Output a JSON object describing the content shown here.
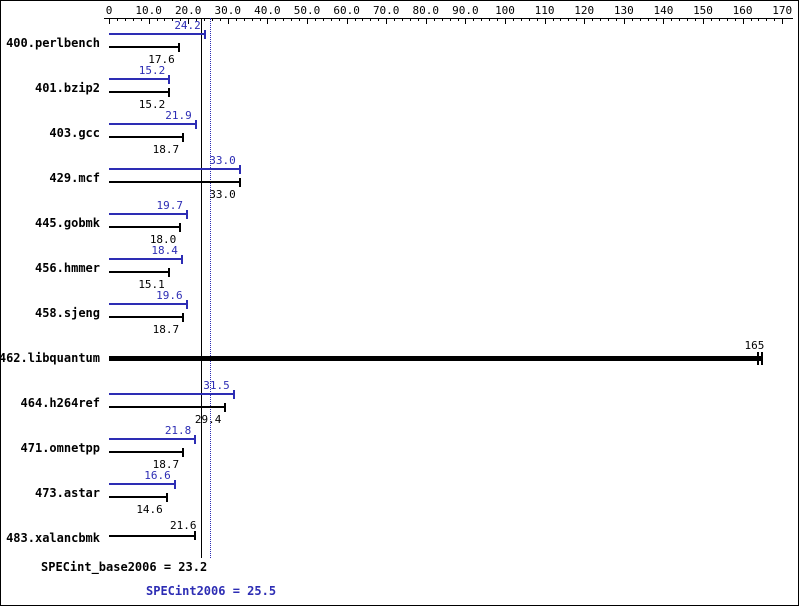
{
  "chart_data": {
    "type": "bar",
    "orientation": "horizontal",
    "axis": {
      "min": 0,
      "max": 170,
      "major_tick_step": 10,
      "minor_tick_step": 2,
      "tick_labels": [
        "0",
        "10.0",
        "20.0",
        "30.0",
        "40.0",
        "50.0",
        "60.0",
        "70.0",
        "80.0",
        "90.0",
        "100",
        "110",
        "120",
        "130",
        "140",
        "150",
        "160",
        "170"
      ]
    },
    "benchmarks": [
      {
        "name": "400.perlbench",
        "peak": 24.2,
        "peak_label": "24.2",
        "base": 17.6,
        "base_label": "17.6"
      },
      {
        "name": "401.bzip2",
        "peak": 15.2,
        "peak_label": "15.2",
        "base": 15.2,
        "base_label": "15.2"
      },
      {
        "name": "403.gcc",
        "peak": 21.9,
        "peak_label": "21.9",
        "base": 18.7,
        "base_label": "18.7"
      },
      {
        "name": "429.mcf",
        "peak": 33.0,
        "peak_label": "33.0",
        "base": 33.0,
        "base_label": "33.0"
      },
      {
        "name": "445.gobmk",
        "peak": 19.7,
        "peak_label": "19.7",
        "base": 18.0,
        "base_label": "18.0"
      },
      {
        "name": "456.hmmer",
        "peak": 18.4,
        "peak_label": "18.4",
        "base": 15.1,
        "base_label": "15.1"
      },
      {
        "name": "458.sjeng",
        "peak": 19.6,
        "peak_label": "19.6",
        "base": 18.7,
        "base_label": "18.7"
      },
      {
        "name": "462.libquantum",
        "single": 165,
        "single_label": "165",
        "style": "thick"
      },
      {
        "name": "464.h264ref",
        "peak": 31.5,
        "peak_label": "31.5",
        "base": 29.4,
        "base_label": "29.4"
      },
      {
        "name": "471.omnetpp",
        "peak": 21.8,
        "peak_label": "21.8",
        "base": 18.7,
        "base_label": "18.7"
      },
      {
        "name": "473.astar",
        "peak": 16.6,
        "peak_label": "16.6",
        "base": 14.6,
        "base_label": "14.6"
      },
      {
        "name": "483.xalancbmk",
        "single": 21.6,
        "single_label": "21.6",
        "style": "normal"
      }
    ],
    "reference_lines": [
      {
        "value": 23.2,
        "style": "solid",
        "color": "#000000"
      },
      {
        "value": 25.5,
        "style": "dotted",
        "color": "#2d2db4"
      }
    ],
    "summary": {
      "base_text": "SPECint_base2006 = 23.2",
      "peak_text": "SPECint2006 = 25.5",
      "base_value": 23.2,
      "peak_value": 25.5
    },
    "colors": {
      "base": "#000000",
      "peak": "#2d2db4"
    }
  }
}
